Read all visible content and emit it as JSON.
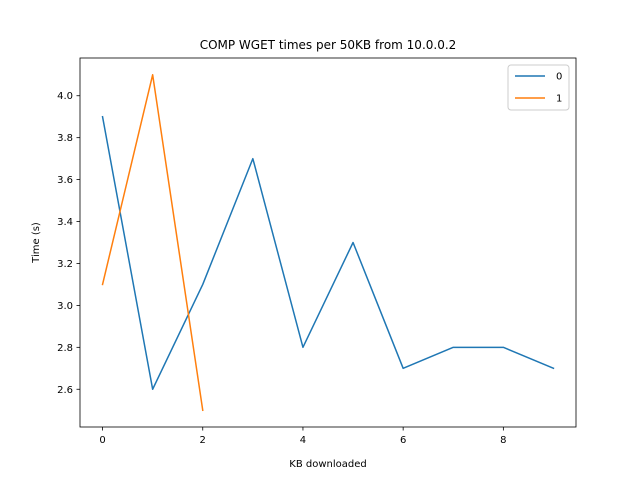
{
  "chart_data": {
    "type": "line",
    "title": "COMP WGET times per 50KB from 10.0.0.2",
    "xlabel": "KB downloaded",
    "ylabel": "Time (s)",
    "xlim": [
      -0.45,
      9.45
    ],
    "ylim": [
      2.42,
      4.18
    ],
    "xticks": [
      0,
      2,
      4,
      6,
      8
    ],
    "yticks": [
      2.6,
      2.8,
      3.0,
      3.2,
      3.4,
      3.6,
      3.8,
      4.0
    ],
    "xtick_labels": [
      "0",
      "2",
      "4",
      "6",
      "8"
    ],
    "ytick_labels": [
      "2.6",
      "2.8",
      "3.0",
      "3.2",
      "3.4",
      "3.6",
      "3.8",
      "4.0"
    ],
    "grid": false,
    "legend_position": "top-right",
    "series": [
      {
        "name": "0",
        "color": "#1f77b4",
        "x": [
          0,
          1,
          2,
          3,
          4,
          5,
          6,
          7,
          8,
          9
        ],
        "y": [
          3.9,
          2.6,
          3.1,
          3.7,
          2.8,
          3.3,
          2.7,
          2.8,
          2.8,
          2.7
        ]
      },
      {
        "name": "1",
        "color": "#ff7f0e",
        "x": [
          0,
          1,
          2
        ],
        "y": [
          3.1,
          4.1,
          2.5
        ]
      }
    ]
  }
}
